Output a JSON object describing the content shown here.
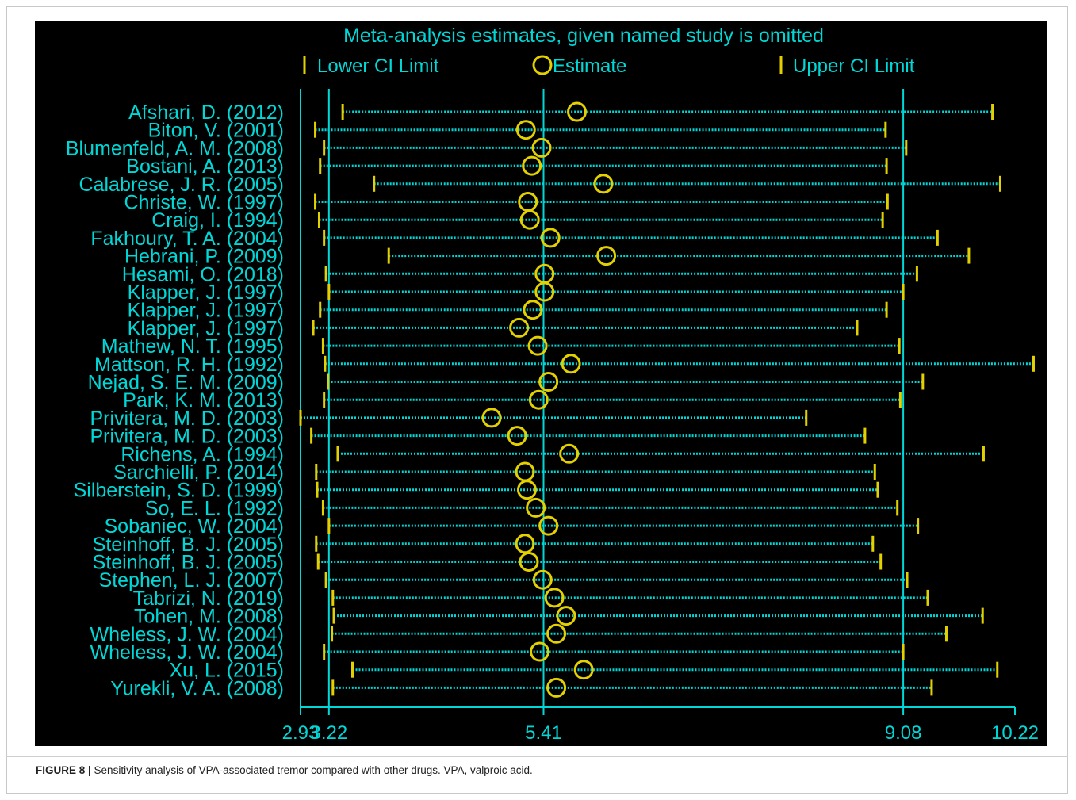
{
  "caption": {
    "label": "FIGURE 8 |",
    "text": " Sensitivity analysis of VPA-associated tremor compared with other drugs. VPA, valproic acid."
  },
  "colors": {
    "background": "#000000",
    "lines": "#00d7d7",
    "markers": "#e2d000"
  },
  "chart_data": {
    "type": "forest",
    "title": "Meta-analysis estimates, given named study is omitted",
    "legend": {
      "position": "top",
      "entries": [
        {
          "symbol": "tick",
          "label": "Lower CI Limit"
        },
        {
          "symbol": "circle",
          "label": "Estimate"
        },
        {
          "symbol": "tick",
          "label": "Upper CI Limit"
        }
      ]
    },
    "x_ticks": [
      "2.93",
      "3.22",
      "5.41",
      "9.08",
      "10.22"
    ],
    "xlim": [
      2.93,
      10.22
    ],
    "reference_lines": [
      3.22,
      5.41,
      9.08
    ],
    "studies": [
      {
        "label": "Afshari, D. (2012)",
        "lower": 3.36,
        "estimate": 5.75,
        "upper": 9.99
      },
      {
        "label": "Biton, V. (2001)",
        "lower": 3.08,
        "estimate": 5.23,
        "upper": 8.9
      },
      {
        "label": "Blumenfeld, A. M. (2008)",
        "lower": 3.17,
        "estimate": 5.39,
        "upper": 9.11
      },
      {
        "label": "Bostani, A. (2013)",
        "lower": 3.13,
        "estimate": 5.29,
        "upper": 8.91
      },
      {
        "label": "Calabrese, J. R. (2005)",
        "lower": 3.68,
        "estimate": 6.02,
        "upper": 10.07
      },
      {
        "label": "Christe, W. (1997)",
        "lower": 3.08,
        "estimate": 5.25,
        "upper": 8.92
      },
      {
        "label": "Craig, I. (1994)",
        "lower": 3.12,
        "estimate": 5.27,
        "upper": 8.87
      },
      {
        "label": "Fakhoury, T. A. (2004)",
        "lower": 3.17,
        "estimate": 5.48,
        "upper": 9.43
      },
      {
        "label": "Hebrani, P. (2009)",
        "lower": 3.83,
        "estimate": 6.05,
        "upper": 9.75
      },
      {
        "label": "Hesami, O. (2018)",
        "lower": 3.19,
        "estimate": 5.42,
        "upper": 9.22
      },
      {
        "label": "Klapper, J. (1997)",
        "lower": 3.22,
        "estimate": 5.42,
        "upper": 9.08
      },
      {
        "label": "Klapper, J. (1997)",
        "lower": 3.13,
        "estimate": 5.3,
        "upper": 8.91
      },
      {
        "label": "Klapper, J. (1997)",
        "lower": 3.06,
        "estimate": 5.16,
        "upper": 8.61
      },
      {
        "label": "Mathew, N. T. (1995)",
        "lower": 3.16,
        "estimate": 5.35,
        "upper": 9.04
      },
      {
        "label": "Mattson, R. H. (1992)",
        "lower": 3.18,
        "estimate": 5.69,
        "upper": 10.41
      },
      {
        "label": "Nejad, S. E. M. (2009)",
        "lower": 3.21,
        "estimate": 5.46,
        "upper": 9.28
      },
      {
        "label": "Park, K. M. (2013)",
        "lower": 3.17,
        "estimate": 5.36,
        "upper": 9.05
      },
      {
        "label": "Privitera, M. D. (2003)",
        "lower": 2.93,
        "estimate": 4.88,
        "upper": 8.09
      },
      {
        "label": "Privitera, M. D. (2003)",
        "lower": 3.04,
        "estimate": 5.14,
        "upper": 8.69
      },
      {
        "label": "Richens, A. (1994)",
        "lower": 3.31,
        "estimate": 5.67,
        "upper": 9.9
      },
      {
        "label": "Sarchielli, P. (2014)",
        "lower": 3.09,
        "estimate": 5.22,
        "upper": 8.79
      },
      {
        "label": "Silberstein, S. D. (1999)",
        "lower": 3.1,
        "estimate": 5.24,
        "upper": 8.82
      },
      {
        "label": "So, E. L. (1992)",
        "lower": 3.16,
        "estimate": 5.33,
        "upper": 9.02
      },
      {
        "label": "Sobaniec, W. (2004)",
        "lower": 3.22,
        "estimate": 5.46,
        "upper": 9.23
      },
      {
        "label": "Steinhoff, B. J. (2005)",
        "lower": 3.09,
        "estimate": 5.22,
        "upper": 8.77
      },
      {
        "label": "Steinhoff, B. J. (2005)",
        "lower": 3.11,
        "estimate": 5.26,
        "upper": 8.85
      },
      {
        "label": "Stephen, L. J. (2007)",
        "lower": 3.19,
        "estimate": 5.4,
        "upper": 9.12
      },
      {
        "label": "Tabrizi, N. (2019)",
        "lower": 3.26,
        "estimate": 5.52,
        "upper": 9.33
      },
      {
        "label": "Tohen, M. (2008)",
        "lower": 3.27,
        "estimate": 5.64,
        "upper": 9.89
      },
      {
        "label": "Wheless, J. W. (2004)",
        "lower": 3.25,
        "estimate": 5.54,
        "upper": 9.52
      },
      {
        "label": "Wheless, J. W. (2004)",
        "lower": 3.17,
        "estimate": 5.37,
        "upper": 9.08
      },
      {
        "label": "Xu, L. (2015)",
        "lower": 3.46,
        "estimate": 5.82,
        "upper": 10.04
      },
      {
        "label": "Yurekli, V. A. (2008)",
        "lower": 3.26,
        "estimate": 5.54,
        "upper": 9.37
      }
    ]
  }
}
